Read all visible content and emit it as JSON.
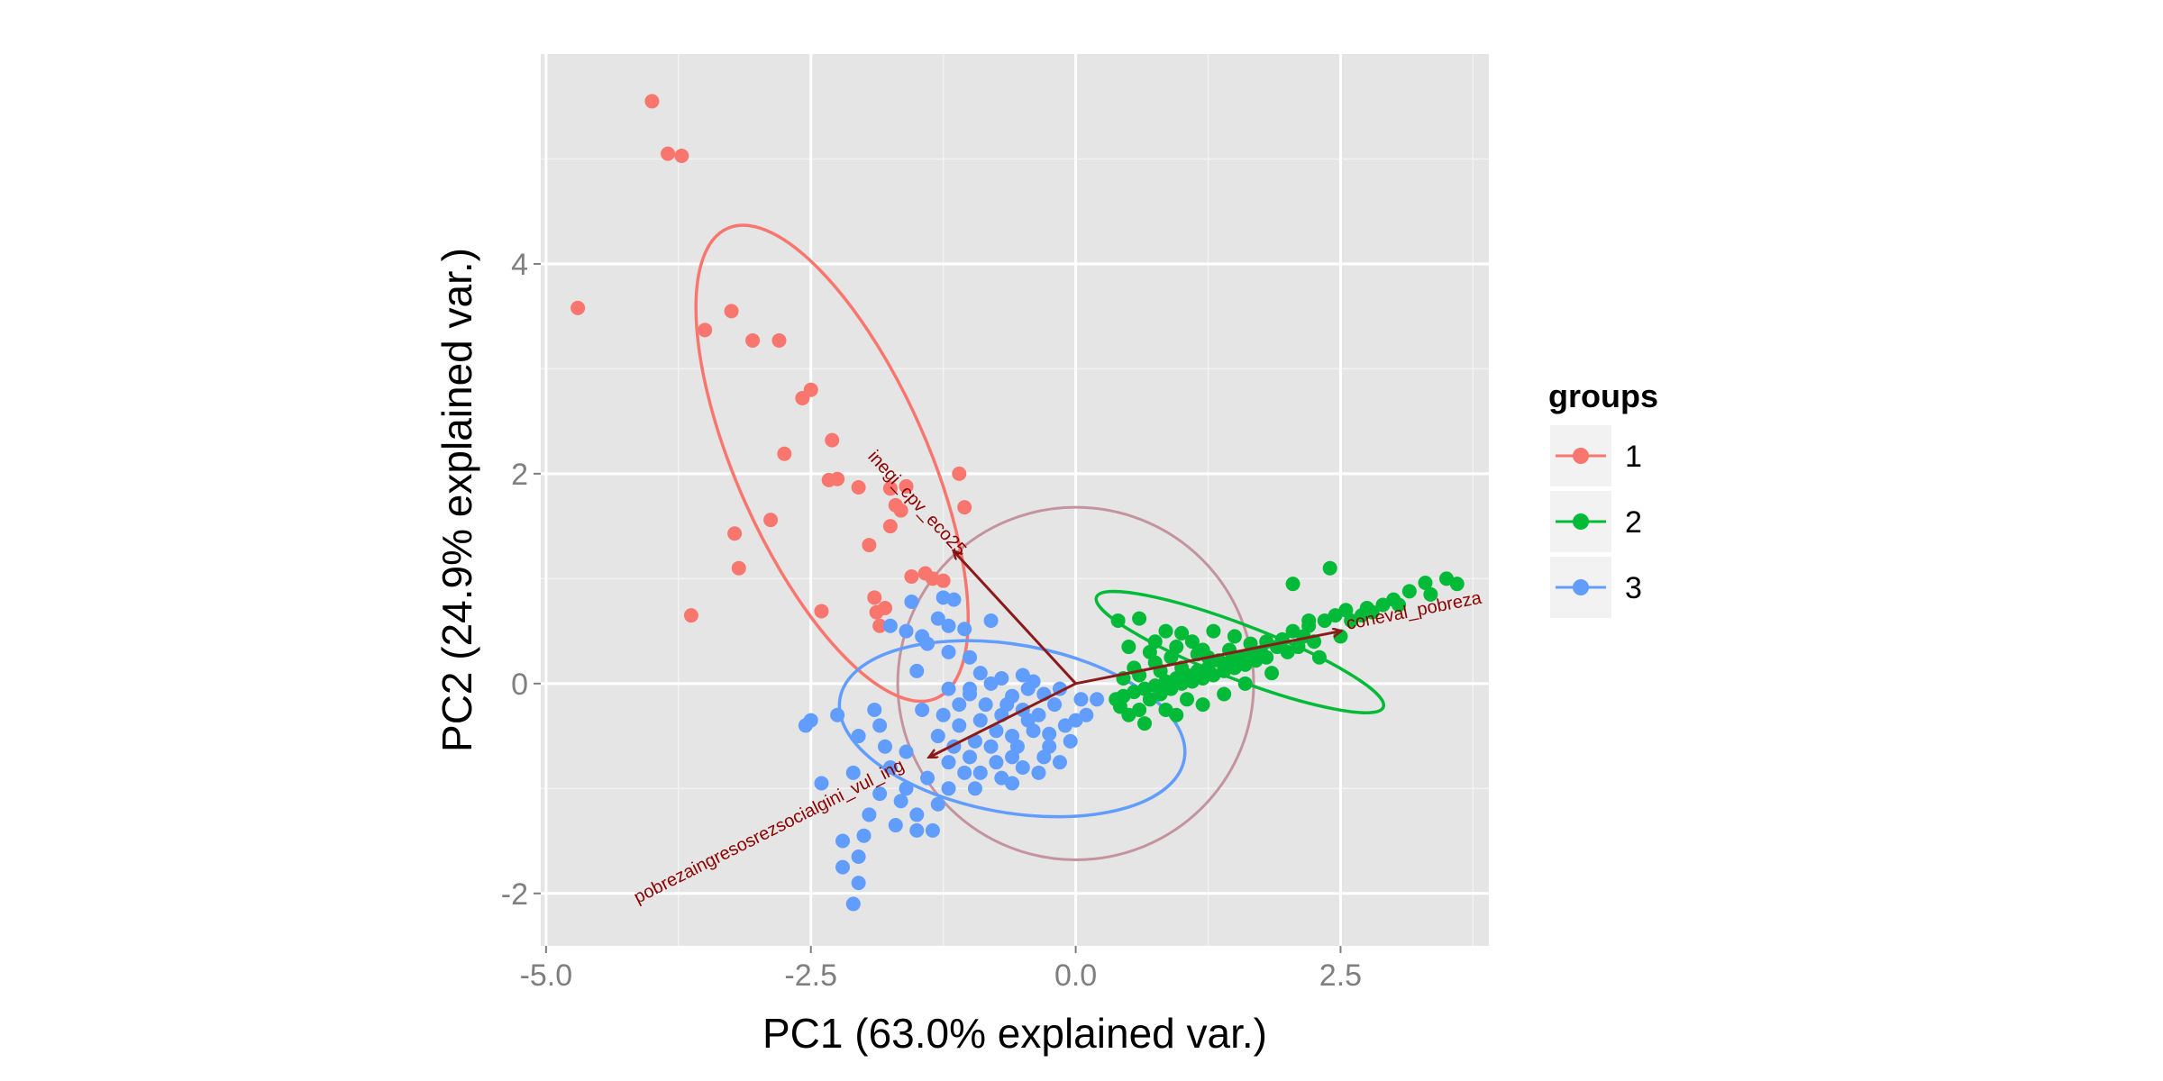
{
  "chart_data": {
    "type": "scatter",
    "xlabel": "PC1 (63.0% explained var.)",
    "ylabel": "PC2 (24.9% explained var.)",
    "xlim": [
      -5.05,
      3.9
    ],
    "ylim": [
      -2.5,
      6.0
    ],
    "x_ticks": [
      -5.0,
      -2.5,
      0.0,
      2.5
    ],
    "x_tick_labels": [
      "-5.0",
      "-2.5",
      "0.0",
      "2.5"
    ],
    "y_ticks": [
      -2,
      0,
      2,
      4
    ],
    "y_tick_labels": [
      "-2",
      "0",
      "2",
      "4"
    ],
    "grid": true,
    "legend": {
      "title": "groups",
      "position": "right"
    },
    "series": [
      {
        "name": "1",
        "color": "#F8766D",
        "points": [
          [
            -4.0,
            5.55
          ],
          [
            -3.85,
            5.05
          ],
          [
            -3.72,
            5.03
          ],
          [
            -4.7,
            3.58
          ],
          [
            -3.25,
            3.55
          ],
          [
            -3.5,
            3.37
          ],
          [
            -3.05,
            3.27
          ],
          [
            -2.8,
            3.27
          ],
          [
            -2.5,
            2.8
          ],
          [
            -2.58,
            2.72
          ],
          [
            -2.3,
            2.32
          ],
          [
            -2.75,
            2.19
          ],
          [
            -2.33,
            1.94
          ],
          [
            -2.25,
            1.95
          ],
          [
            -2.05,
            1.87
          ],
          [
            -1.75,
            1.86
          ],
          [
            -1.6,
            1.88
          ],
          [
            -1.1,
            2.0
          ],
          [
            -1.7,
            1.7
          ],
          [
            -1.65,
            1.65
          ],
          [
            -1.05,
            1.68
          ],
          [
            -2.88,
            1.56
          ],
          [
            -1.75,
            1.5
          ],
          [
            -3.22,
            1.43
          ],
          [
            -1.95,
            1.32
          ],
          [
            -3.18,
            1.1
          ],
          [
            -1.55,
            1.02
          ],
          [
            -1.42,
            1.05
          ],
          [
            -1.35,
            1.0
          ],
          [
            -1.25,
            0.98
          ],
          [
            -1.9,
            0.82
          ],
          [
            -1.8,
            0.72
          ],
          [
            -1.88,
            0.68
          ],
          [
            -2.4,
            0.69
          ],
          [
            -3.63,
            0.65
          ],
          [
            -1.85,
            0.55
          ]
        ],
        "ellipse": {
          "center": [
            -2.3,
            2.1
          ],
          "half_axes": [
            0.9,
            2.45
          ],
          "rotation_deg": -24
        }
      },
      {
        "name": "2",
        "color": "#00BA38",
        "points": [
          [
            2.4,
            1.1
          ],
          [
            2.05,
            0.95
          ],
          [
            3.5,
            1.0
          ],
          [
            3.3,
            0.96
          ],
          [
            3.6,
            0.95
          ],
          [
            3.15,
            0.88
          ],
          [
            3.35,
            0.85
          ],
          [
            3.0,
            0.8
          ],
          [
            2.9,
            0.75
          ],
          [
            2.75,
            0.72
          ],
          [
            2.55,
            0.7
          ],
          [
            2.7,
            0.65
          ],
          [
            2.45,
            0.65
          ],
          [
            2.35,
            0.6
          ],
          [
            2.2,
            0.55
          ],
          [
            2.05,
            0.5
          ],
          [
            2.15,
            0.45
          ],
          [
            1.95,
            0.42
          ],
          [
            1.8,
            0.4
          ],
          [
            1.9,
            0.35
          ],
          [
            1.75,
            0.3
          ],
          [
            1.65,
            0.28
          ],
          [
            1.55,
            0.25
          ],
          [
            1.45,
            0.2
          ],
          [
            1.35,
            0.22
          ],
          [
            1.25,
            0.15
          ],
          [
            1.15,
            0.12
          ],
          [
            1.05,
            0.08
          ],
          [
            0.95,
            0.05
          ],
          [
            0.85,
            0.02
          ],
          [
            0.75,
            -0.02
          ],
          [
            0.65,
            -0.05
          ],
          [
            0.55,
            -0.08
          ],
          [
            0.45,
            -0.12
          ],
          [
            0.38,
            -0.15
          ],
          [
            0.42,
            -0.22
          ],
          [
            0.5,
            -0.3
          ],
          [
            0.6,
            -0.25
          ],
          [
            0.7,
            -0.15
          ],
          [
            0.8,
            -0.1
          ],
          [
            0.9,
            -0.05
          ],
          [
            1.0,
            0.0
          ],
          [
            1.1,
            0.02
          ],
          [
            1.2,
            0.05
          ],
          [
            1.3,
            0.08
          ],
          [
            1.4,
            0.12
          ],
          [
            1.5,
            0.15
          ],
          [
            1.6,
            0.18
          ],
          [
            1.7,
            0.22
          ],
          [
            1.8,
            0.25
          ],
          [
            2.0,
            0.3
          ],
          [
            2.1,
            0.35
          ],
          [
            2.25,
            0.4
          ],
          [
            0.4,
            0.6
          ],
          [
            0.6,
            0.62
          ],
          [
            0.85,
            0.5
          ],
          [
            1.0,
            0.48
          ],
          [
            1.3,
            0.5
          ],
          [
            1.5,
            0.45
          ],
          [
            0.5,
            0.35
          ],
          [
            0.7,
            0.3
          ],
          [
            0.95,
            0.35
          ],
          [
            1.2,
            0.32
          ],
          [
            0.55,
            0.15
          ],
          [
            0.75,
            0.2
          ],
          [
            0.9,
            0.25
          ],
          [
            1.15,
            0.28
          ],
          [
            0.95,
            -0.3
          ],
          [
            1.2,
            -0.2
          ],
          [
            1.4,
            -0.1
          ],
          [
            0.65,
            -0.38
          ],
          [
            0.85,
            -0.25
          ],
          [
            1.05,
            -0.15
          ],
          [
            1.6,
            0.0
          ],
          [
            1.85,
            0.1
          ],
          [
            2.3,
            0.25
          ],
          [
            2.5,
            0.45
          ],
          [
            0.45,
            0.05
          ],
          [
            0.6,
            0.08
          ],
          [
            0.8,
            0.12
          ],
          [
            1.0,
            0.15
          ],
          [
            1.25,
            0.25
          ],
          [
            1.45,
            0.32
          ],
          [
            1.65,
            0.38
          ],
          [
            2.2,
            0.6
          ],
          [
            2.6,
            0.6
          ],
          [
            2.8,
            0.68
          ],
          [
            3.05,
            0.75
          ],
          [
            0.75,
            0.4
          ],
          [
            1.1,
            0.4
          ]
        ],
        "ellipse": {
          "center": [
            1.55,
            0.3
          ],
          "half_axes": [
            1.45,
            0.26
          ],
          "rotation_deg": 21
        }
      },
      {
        "name": "3",
        "color": "#619CFF",
        "points": [
          [
            -1.25,
            0.82
          ],
          [
            -1.15,
            0.8
          ],
          [
            -0.8,
            0.6
          ],
          [
            -1.05,
            0.52
          ],
          [
            -1.2,
            0.55
          ],
          [
            -1.55,
            0.78
          ],
          [
            -1.6,
            0.5
          ],
          [
            -1.45,
            0.45
          ],
          [
            -1.3,
            0.62
          ],
          [
            -1.75,
            0.55
          ],
          [
            -1.4,
            0.38
          ],
          [
            -1.2,
            0.3
          ],
          [
            -1.0,
            0.25
          ],
          [
            -1.5,
            0.12
          ],
          [
            -0.9,
            0.1
          ],
          [
            -0.7,
            0.05
          ],
          [
            -0.5,
            0.08
          ],
          [
            -0.4,
            0.02
          ],
          [
            -0.8,
            0.0
          ],
          [
            -1.2,
            -0.05
          ],
          [
            -1.0,
            -0.1
          ],
          [
            -0.6,
            -0.12
          ],
          [
            -0.3,
            -0.1
          ],
          [
            -0.2,
            -0.2
          ],
          [
            -0.5,
            -0.25
          ],
          [
            -0.7,
            -0.3
          ],
          [
            -0.9,
            -0.35
          ],
          [
            -1.1,
            -0.4
          ],
          [
            -1.3,
            -0.5
          ],
          [
            -0.6,
            -0.5
          ],
          [
            -0.4,
            -0.45
          ],
          [
            -0.1,
            -0.4
          ],
          [
            0.1,
            -0.3
          ],
          [
            0.2,
            -0.15
          ],
          [
            -0.8,
            -0.6
          ],
          [
            -1.0,
            -0.7
          ],
          [
            -1.2,
            -0.75
          ],
          [
            -0.9,
            -0.85
          ],
          [
            -0.7,
            -0.9
          ],
          [
            -0.5,
            -0.8
          ],
          [
            -0.3,
            -0.7
          ],
          [
            -0.6,
            -0.7
          ],
          [
            -1.4,
            -0.9
          ],
          [
            -1.6,
            -1.0
          ],
          [
            -1.3,
            -1.15
          ],
          [
            -1.5,
            -1.25
          ],
          [
            -1.35,
            -1.4
          ],
          [
            -1.7,
            -1.35
          ],
          [
            -1.85,
            -1.05
          ],
          [
            -2.1,
            -0.85
          ],
          [
            -2.4,
            -0.95
          ],
          [
            -2.5,
            -0.35
          ],
          [
            -2.25,
            -0.3
          ],
          [
            -1.9,
            -0.25
          ],
          [
            -2.05,
            -0.5
          ],
          [
            -1.8,
            -0.6
          ],
          [
            -1.95,
            -1.25
          ],
          [
            -2.2,
            -1.5
          ],
          [
            -2.05,
            -1.65
          ],
          [
            -2.2,
            -1.75
          ],
          [
            -2.05,
            -1.9
          ],
          [
            -2.1,
            -2.1
          ],
          [
            -1.0,
            -0.05
          ],
          [
            -0.15,
            -0.05
          ],
          [
            -0.05,
            -0.55
          ],
          [
            -0.25,
            -0.6
          ],
          [
            -0.45,
            -0.35
          ],
          [
            -0.75,
            -0.45
          ],
          [
            -0.95,
            -0.55
          ],
          [
            -1.15,
            -0.6
          ],
          [
            -0.85,
            -0.2
          ],
          [
            -0.65,
            -0.2
          ],
          [
            -0.35,
            -0.3
          ],
          [
            -0.55,
            -0.6
          ],
          [
            -0.75,
            -0.75
          ],
          [
            -1.05,
            -0.85
          ],
          [
            -0.95,
            -1.0
          ],
          [
            -0.6,
            -0.95
          ],
          [
            -1.25,
            -0.3
          ],
          [
            -1.45,
            -0.25
          ],
          [
            -1.85,
            -0.4
          ],
          [
            -1.6,
            -0.65
          ],
          [
            -1.75,
            -0.8
          ],
          [
            -2.0,
            -1.45
          ],
          [
            -1.5,
            -1.4
          ],
          [
            -1.1,
            -0.2
          ],
          [
            -0.35,
            -0.85
          ],
          [
            -0.15,
            -0.75
          ],
          [
            0.0,
            -0.35
          ],
          [
            0.05,
            -0.15
          ],
          [
            -2.55,
            -0.4
          ],
          [
            -1.65,
            -1.12
          ],
          [
            -1.2,
            -1.0
          ],
          [
            -0.45,
            -0.05
          ],
          [
            -0.25,
            -0.48
          ]
        ],
        "ellipse": {
          "center": [
            -0.6,
            -0.43
          ],
          "half_axes": [
            1.65,
            0.8
          ],
          "rotation_deg": 10
        }
      }
    ],
    "circle": {
      "center": [
        0.0,
        0.0
      ],
      "radius": 1.68
    },
    "arrows": [
      {
        "label": "inegi_cpv_eco25",
        "x": -1.15,
        "y": 1.26
      },
      {
        "label": "coneval_pobreza",
        "x": 2.5,
        "y": 0.5
      },
      {
        "label": "pobrezaingresosrezsocialgini_vul_ing",
        "x": -1.38,
        "y": -0.7
      }
    ]
  }
}
